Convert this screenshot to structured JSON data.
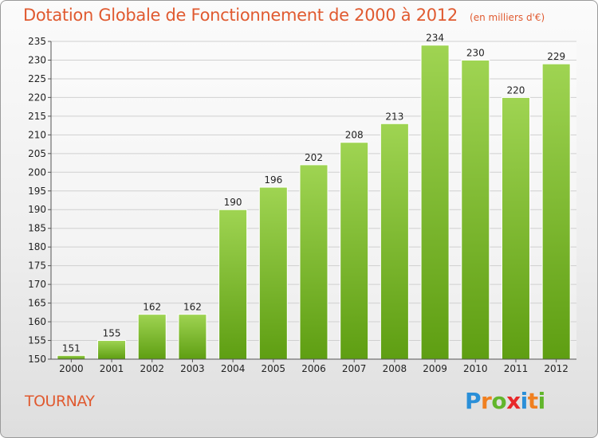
{
  "header": {
    "title": "Dotation Globale de Fonctionnement de 2000 à 2012",
    "unit": "(en milliers d'€)"
  },
  "footer": {
    "city": "TOURNAY",
    "brand_letters": [
      "P",
      "r",
      "o",
      "x",
      "i",
      "t",
      "i"
    ]
  },
  "colors": {
    "title": "#e05a30",
    "bar_top": "#9fd452",
    "bar_bottom": "#5e9e12",
    "grid": "#d0d0d0"
  },
  "chart_data": {
    "type": "bar",
    "title": "Dotation Globale de Fonctionnement de 2000 à 2012",
    "categories": [
      "2000",
      "2001",
      "2002",
      "2003",
      "2004",
      "2005",
      "2006",
      "2007",
      "2008",
      "2009",
      "2010",
      "2011",
      "2012"
    ],
    "values": [
      151,
      155,
      162,
      162,
      190,
      196,
      202,
      208,
      213,
      234,
      230,
      220,
      229
    ],
    "ylim": [
      150,
      235
    ],
    "yticks": [
      150,
      155,
      160,
      165,
      170,
      175,
      180,
      185,
      190,
      195,
      200,
      205,
      210,
      215,
      220,
      225,
      230,
      235
    ],
    "grid": true,
    "data_labels": true
  }
}
